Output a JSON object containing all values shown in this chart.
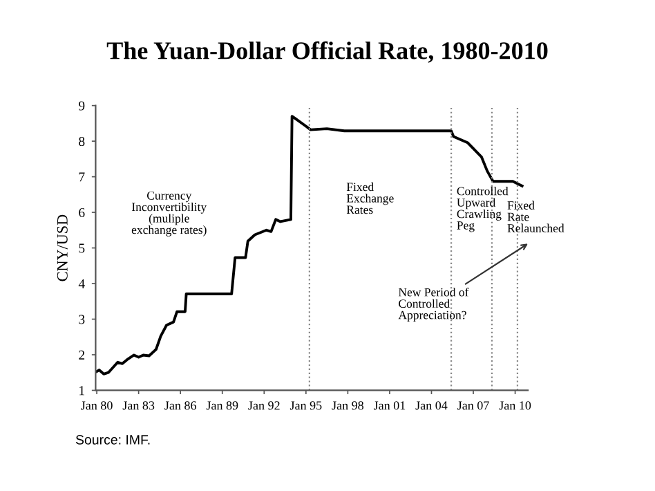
{
  "chart_data": {
    "type": "line",
    "title": "The Yuan-Dollar Official Rate, 1980-2010",
    "ylabel": "CNY/USD",
    "x": [
      "1980-01",
      "1980-03",
      "1980-07",
      "1980-11",
      "1981-07",
      "1981-11",
      "1982-03",
      "1982-09",
      "1983-01",
      "1983-05",
      "1983-10",
      "1984-04",
      "1984-08",
      "1985-01",
      "1985-07",
      "1985-10",
      "1986-05",
      "1986-06",
      "1989-09",
      "1989-12",
      "1990-09",
      "1990-11",
      "1991-05",
      "1992-03",
      "1992-07",
      "1992-11",
      "1993-03",
      "1993-12",
      "1994-01",
      "1994-04",
      "1995-01",
      "1995-05",
      "1996-07",
      "1997-10",
      "2005-06",
      "2005-08",
      "2006-08",
      "2007-08",
      "2008-01",
      "2008-06",
      "2009-11",
      "2010-07"
    ],
    "series": [
      {
        "color": "#000000",
        "values": [
          1.53,
          1.57,
          1.46,
          1.5,
          1.79,
          1.75,
          1.86,
          1.99,
          1.93,
          1.99,
          1.97,
          2.15,
          2.52,
          2.83,
          2.92,
          3.21,
          3.21,
          3.71,
          3.71,
          4.73,
          4.73,
          5.19,
          5.37,
          5.5,
          5.46,
          5.8,
          5.74,
          5.8,
          8.7,
          8.63,
          8.42,
          8.32,
          8.35,
          8.29,
          8.29,
          8.13,
          7.96,
          7.56,
          7.16,
          6.87,
          6.87,
          6.74
        ]
      }
    ],
    "xlim": [
      "1979-12",
      "2010-12"
    ],
    "xticks": [
      {
        "value": "1980-01",
        "label": "Jan 80"
      },
      {
        "value": "1983-01",
        "label": "Jan 83"
      },
      {
        "value": "1986-01",
        "label": "Jan 86"
      },
      {
        "value": "1989-01",
        "label": "Jan 89"
      },
      {
        "value": "1992-01",
        "label": "Jan 92"
      },
      {
        "value": "1995-01",
        "label": "Jan 95"
      },
      {
        "value": "1998-01",
        "label": "Jan 98"
      },
      {
        "value": "2001-01",
        "label": "Jan 01"
      },
      {
        "value": "2004-01",
        "label": "Jan 04"
      },
      {
        "value": "2007-01",
        "label": "Jan 07"
      },
      {
        "value": "2010-01",
        "label": "Jan 10"
      }
    ],
    "ylim": [
      1,
      9
    ],
    "yticks": [
      1,
      2,
      3,
      4,
      5,
      6,
      7,
      8,
      9
    ],
    "grid": false,
    "legend": false,
    "marker": "none",
    "line_style": "solid",
    "ref_lines": [
      {
        "axis": "x",
        "value": "1995-04",
        "color": "#888888",
        "line_style": "dotted"
      },
      {
        "axis": "x",
        "value": "2005-06",
        "color": "#888888",
        "line_style": "dotted"
      },
      {
        "axis": "x",
        "value": "2008-05",
        "color": "#888888",
        "line_style": "dotted"
      },
      {
        "axis": "x",
        "value": "2010-03",
        "color": "#888888",
        "line_style": "dotted"
      }
    ],
    "annotations": [
      "Currency\nInconvertibility\n(muliple\nexchange rates)",
      "Fixed\nExchange\nRates",
      "Controlled\nUpward\nCrawling\nPeg",
      "Fixed\nRate\nRelaunched",
      "New Period of\nControlled\nAppreciation?",
      "Source: IMF."
    ]
  }
}
